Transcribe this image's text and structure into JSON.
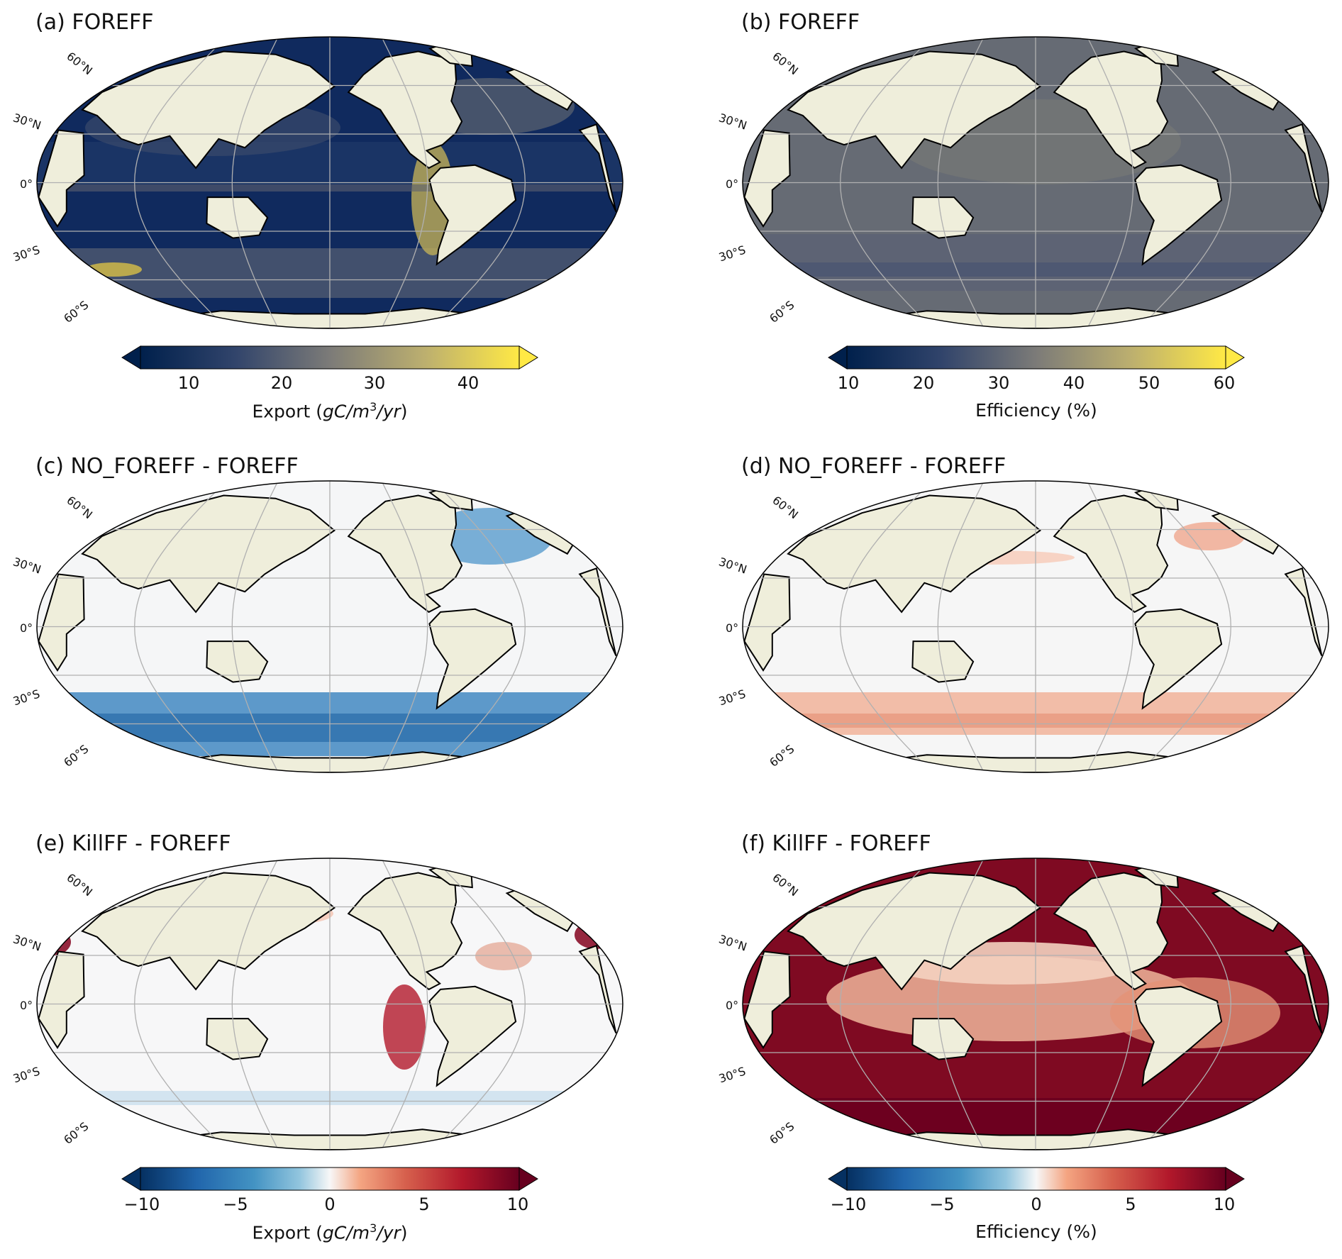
{
  "panels": [
    {
      "id": "a",
      "title": "(a) FOREFF",
      "field": "mean",
      "lat_labels": [
        "60°N",
        "30°N",
        "0°",
        "30°S",
        "60°S"
      ],
      "colormap": "cividis"
    },
    {
      "id": "b",
      "title": "(b) FOREFF",
      "field": "efficiency",
      "lat_labels": [
        "60°N",
        "30°N",
        "0°",
        "30°S",
        "60°S"
      ],
      "colormap": "cividis"
    },
    {
      "id": "c",
      "title": "(c) NO_FOREFF - FOREFF",
      "field": "diff_export_southern_blue",
      "lat_labels": [
        "60°N",
        "30°N",
        "0°",
        "30°S",
        "60°S"
      ],
      "colormap": "RdBu_r"
    },
    {
      "id": "d",
      "title": "(d) NO_FOREFF - FOREFF",
      "field": "diff_eff_southern_red",
      "lat_labels": [
        "60°N",
        "30°N",
        "0°",
        "30°S",
        "60°S"
      ],
      "colormap": "RdBu_r"
    },
    {
      "id": "e",
      "title": "(e) KillFF - FOREFF",
      "field": "diff_export_mixed",
      "lat_labels": [
        "60°N",
        "30°N",
        "0°",
        "30°S",
        "60°S"
      ],
      "colormap": "RdBu_r"
    },
    {
      "id": "f",
      "title": "(f) KillFF - FOREFF",
      "field": "diff_eff_strong_red",
      "lat_labels": [
        "60°N",
        "30°N",
        "0°",
        "30°S",
        "60°S"
      ],
      "colormap": "RdBu_r"
    }
  ],
  "colorbars": [
    {
      "id": "cbar-a",
      "ticks": [
        "10",
        "20",
        "30",
        "40"
      ],
      "tick_values": [
        10,
        20,
        30,
        40
      ],
      "range": [
        4,
        46
      ],
      "label_prefix": "Export (",
      "label_var": "gC/m",
      "label_sup": "3",
      "label_var2": "/yr",
      "label_suffix": ")",
      "colormap": "cividis"
    },
    {
      "id": "cbar-b",
      "ticks": [
        "10",
        "20",
        "30",
        "40",
        "50",
        "60"
      ],
      "tick_values": [
        10,
        20,
        30,
        40,
        50,
        60
      ],
      "range": [
        10,
        60
      ],
      "label": "Efficiency (%)",
      "colormap": "cividis"
    },
    {
      "id": "cbar-e",
      "ticks": [
        "−10",
        "−5",
        "0",
        "5",
        "10"
      ],
      "tick_values": [
        -10,
        -5,
        0,
        5,
        10
      ],
      "range": [
        -10,
        10
      ],
      "label_prefix": "Export (",
      "label_var": "gC/m",
      "label_sup": "3",
      "label_var2": "/yr",
      "label_suffix": ")",
      "colormap": "RdBu_r"
    },
    {
      "id": "cbar-f",
      "ticks": [
        "−10",
        "−5",
        "0",
        "5",
        "10"
      ],
      "tick_values": [
        -10,
        -5,
        0,
        5,
        10
      ],
      "range": [
        -10,
        10
      ],
      "label": "Efficiency (%)",
      "colormap": "RdBu_r"
    }
  ],
  "colors": {
    "land": "#efeedb",
    "coast": "#000000",
    "grid": "#b0b0b0",
    "missing": "#ffffff"
  }
}
